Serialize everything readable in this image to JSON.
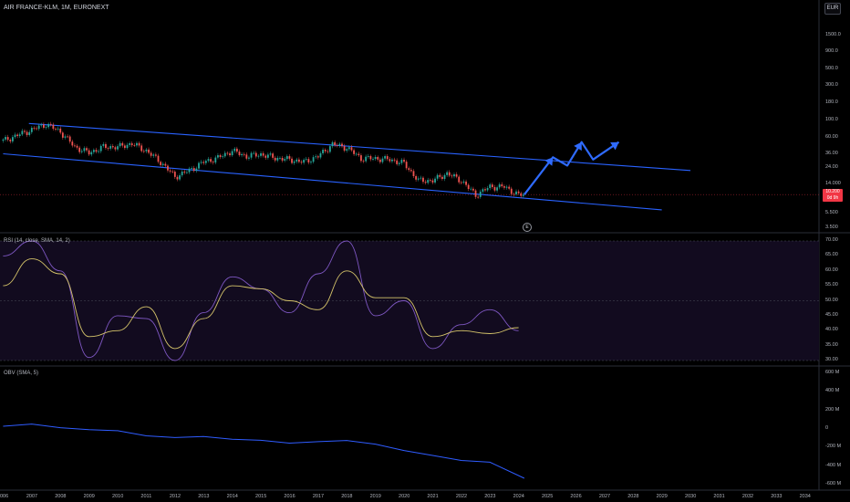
{
  "header": {
    "symbol_title": "AIR FRANCE-KLM, 1M, EURONEXT"
  },
  "toolbar": {
    "currency_button": "EUR"
  },
  "panes": {
    "rsi_label": "RSI (14, close, SMA, 14, 2)",
    "obv_label": "OBV (SMA, 5)"
  },
  "price_axis": {
    "ticks": [
      "1500.0",
      "900.0",
      "500.0",
      "300.0",
      "180.0",
      "100.0",
      "60.00",
      "36.00",
      "24.00",
      "14.000",
      "5.500",
      "3.500"
    ]
  },
  "last_price": {
    "line1": "10.200",
    "line2": "0d 9h"
  },
  "rsi_axis": {
    "ticks": [
      "70.00",
      "65.00",
      "60.00",
      "55.00",
      "50.00",
      "45.00",
      "40.00",
      "35.00",
      "30.00"
    ]
  },
  "obv_axis": {
    "ticks": [
      "600 M",
      "400 M",
      "200 M",
      "0",
      "-200 M",
      "-400 M",
      "-600 M"
    ]
  },
  "time_axis": {
    "ticks": [
      "006",
      "2007",
      "2008",
      "2009",
      "2010",
      "2011",
      "2012",
      "2013",
      "2014",
      "2015",
      "2016",
      "2017",
      "2018",
      "2019",
      "2020",
      "2021",
      "2022",
      "2023",
      "2024",
      "2025",
      "2026",
      "2027",
      "2028",
      "2029",
      "2030",
      "2031",
      "2032",
      "2033",
      "2034"
    ]
  },
  "events": {
    "icon_label": "E"
  },
  "colors": {
    "up": "#26a69a",
    "down": "#ef5350",
    "channel": "#2962ff",
    "projection": "#2f6bff",
    "rsi_line": "#7e57c2",
    "rsi_ma": "#d4c36a",
    "obv": "#2f5cff",
    "last_price": "#f23645"
  },
  "chart_data": [
    {
      "type": "line",
      "title": "AIR FRANCE-KLM, 1M, EURONEXT",
      "x_label": "",
      "y_label": "",
      "scale": "log",
      "x": [
        2006.0,
        2007.0,
        2007.5,
        2008.0,
        2008.5,
        2009.0,
        2009.5,
        2010.0,
        2010.5,
        2011.0,
        2011.5,
        2012.0,
        2012.5,
        2013.0,
        2013.5,
        2014.0,
        2014.5,
        2015.0,
        2015.5,
        2016.0,
        2016.5,
        2017.0,
        2017.5,
        2018.0,
        2018.5,
        2019.0,
        2019.5,
        2020.0,
        2020.5,
        2021.0,
        2021.5,
        2022.0,
        2022.5,
        2023.0,
        2023.5,
        2024.0,
        2024.2
      ],
      "series": [
        {
          "values": [
            90,
            140,
            175,
            130,
            70,
            55,
            70,
            70,
            80,
            60,
            38,
            21,
            27,
            38,
            45,
            60,
            48,
            52,
            45,
            42,
            38,
            48,
            78,
            68,
            44,
            44,
            42,
            36,
            18,
            18,
            24,
            18,
            10,
            14,
            14,
            10,
            10.2
          ]
        }
      ],
      "overlays": {
        "channel_upper": [
          [
            2006.9,
            180
          ],
          [
            2030.0,
            27
          ]
        ],
        "channel_lower": [
          [
            2006.0,
            53
          ],
          [
            2029.0,
            5.5
          ]
        ],
        "projection_arrow": [
          [
            2024.2,
            10.2
          ],
          [
            2025.2,
            46
          ],
          [
            2025.7,
            33
          ],
          [
            2026.2,
            85
          ],
          [
            2026.6,
            42
          ],
          [
            2027.5,
            85
          ]
        ]
      }
    },
    {
      "type": "line",
      "title": "RSI (14, close, SMA, 14, 2)",
      "ylim": [
        30,
        70
      ],
      "x": [
        2006,
        2007,
        2008,
        2009,
        2010,
        2011,
        2012,
        2013,
        2014,
        2015,
        2016,
        2017,
        2018,
        2019,
        2020,
        2021,
        2022,
        2023,
        2024
      ],
      "series": [
        {
          "values": [
            65,
            70,
            60,
            31,
            45,
            44,
            30,
            46,
            58,
            54,
            46,
            59,
            70,
            45,
            50,
            34,
            42,
            47,
            40
          ]
        },
        {
          "values": [
            55,
            64,
            59,
            38,
            40,
            48,
            34,
            44,
            55,
            54,
            50,
            47,
            60,
            51,
            51,
            38,
            40,
            39,
            41
          ]
        }
      ]
    },
    {
      "type": "line",
      "title": "OBV (SMA, 5)",
      "ylim": [
        -600,
        600
      ],
      "x": [
        2006,
        2007,
        2008,
        2009,
        2010,
        2011,
        2012,
        2013,
        2014,
        2015,
        2016,
        2017,
        2018,
        2019,
        2020,
        2021,
        2022,
        2023,
        2024.2
      ],
      "series": [
        {
          "values": [
            10,
            30,
            0,
            -30,
            -40,
            -90,
            -120,
            -100,
            -130,
            -150,
            -170,
            -160,
            -150,
            -180,
            -260,
            -310,
            -360,
            -390,
            -560
          ]
        }
      ]
    }
  ]
}
